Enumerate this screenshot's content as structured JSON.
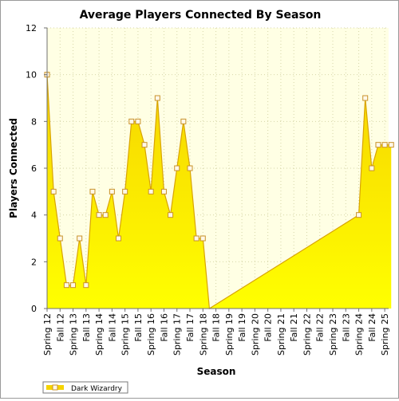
{
  "chart_data": {
    "type": "area",
    "title": "Average Players Connected By Season",
    "xlabel": "Season",
    "ylabel": "Players Connected",
    "ylim": [
      0,
      12
    ],
    "yticks": [
      0,
      2,
      4,
      6,
      8,
      10,
      12
    ],
    "grid": true,
    "legend_position": "bottom-left",
    "colors": {
      "fill_top": "#f6d400",
      "fill_bottom": "#ffff00",
      "line": "#d9a400",
      "marker_fill": "#fff8e8",
      "marker_stroke": "#c8922a",
      "plot_bg": "#ffffe4",
      "grid": "#d6d6a8"
    },
    "x_labels": [
      "Spring 12",
      "Fall 12",
      "Spring 13",
      "Fall 13",
      "Spring 14",
      "Fall 14",
      "Spring 15",
      "Fall 15",
      "Spring 16",
      "Fall 16",
      "Spring 17",
      "Fall 17",
      "Spring 18",
      "Fall 18",
      "Spring 19",
      "Fall 19",
      "Spring 20",
      "Fall 20",
      "Spring 21",
      "Fall 21",
      "Spring 22",
      "Fall 22",
      "Spring 23",
      "Fall 23",
      "Spring 24",
      "Fall 24",
      "Spring 25"
    ],
    "x_range": [
      0,
      26.3
    ],
    "series": [
      {
        "name": "Dark Wizardry",
        "x": [
          0,
          0.5,
          1,
          1.5,
          2,
          2.5,
          3,
          3.5,
          4,
          4.5,
          5,
          5.5,
          6,
          6.5,
          7,
          7.5,
          8,
          8.5,
          9,
          9.5,
          10,
          10.5,
          11,
          11.5,
          12,
          12.5,
          24,
          24.5,
          25,
          25.5,
          26,
          26.5
        ],
        "y": [
          10,
          5,
          3,
          1,
          1,
          3,
          1,
          5,
          4,
          4,
          5,
          3,
          5,
          8,
          8,
          7,
          5,
          9,
          5,
          4,
          6,
          8,
          6,
          3,
          3,
          0,
          4,
          9,
          6,
          7,
          7,
          7
        ]
      }
    ]
  }
}
